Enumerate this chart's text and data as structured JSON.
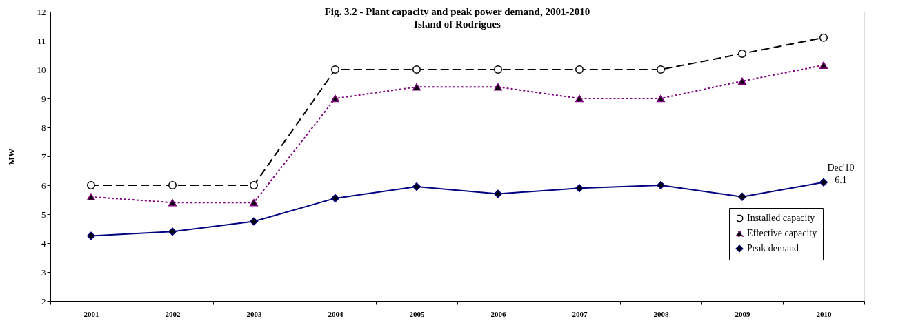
{
  "chart_data": {
    "type": "line",
    "title": "Fig. 3.2 - Plant capacity and peak power demand, 2001-2010",
    "subtitle": "Island of Rodrigues",
    "ylabel": "MW",
    "categories": [
      "2001",
      "2002",
      "2003",
      "2004",
      "2005",
      "2006",
      "2007",
      "2008",
      "2009",
      "2010"
    ],
    "series": [
      {
        "name": "Installed capacity",
        "color": "#000000",
        "marker": "circle",
        "line_style": "dashed",
        "values": [
          6,
          6,
          6,
          10,
          10,
          10,
          10,
          10,
          10.55,
          11.1
        ]
      },
      {
        "name": "Effective capacity",
        "color": "#800080",
        "marker": "triangle",
        "line_style": "dotted",
        "values": [
          5.6,
          5.4,
          5.4,
          9.0,
          9.4,
          9.4,
          9.0,
          9.0,
          9.6,
          10.15
        ]
      },
      {
        "name": "Peak demand",
        "color": "#000080",
        "marker": "diamond",
        "line_style": "solid",
        "values": [
          4.25,
          4.4,
          4.75,
          5.55,
          5.95,
          5.7,
          5.9,
          6.0,
          5.6,
          6.1
        ]
      }
    ],
    "ylim": [
      2,
      12
    ],
    "yticks": [
      2,
      3,
      4,
      5,
      6,
      7,
      8,
      9,
      10,
      11,
      12
    ],
    "grid": false,
    "legend": "bottom right",
    "annotations": [
      {
        "text": "Dec'10\n6.1",
        "x": "2010",
        "y": 6.1
      }
    ]
  }
}
